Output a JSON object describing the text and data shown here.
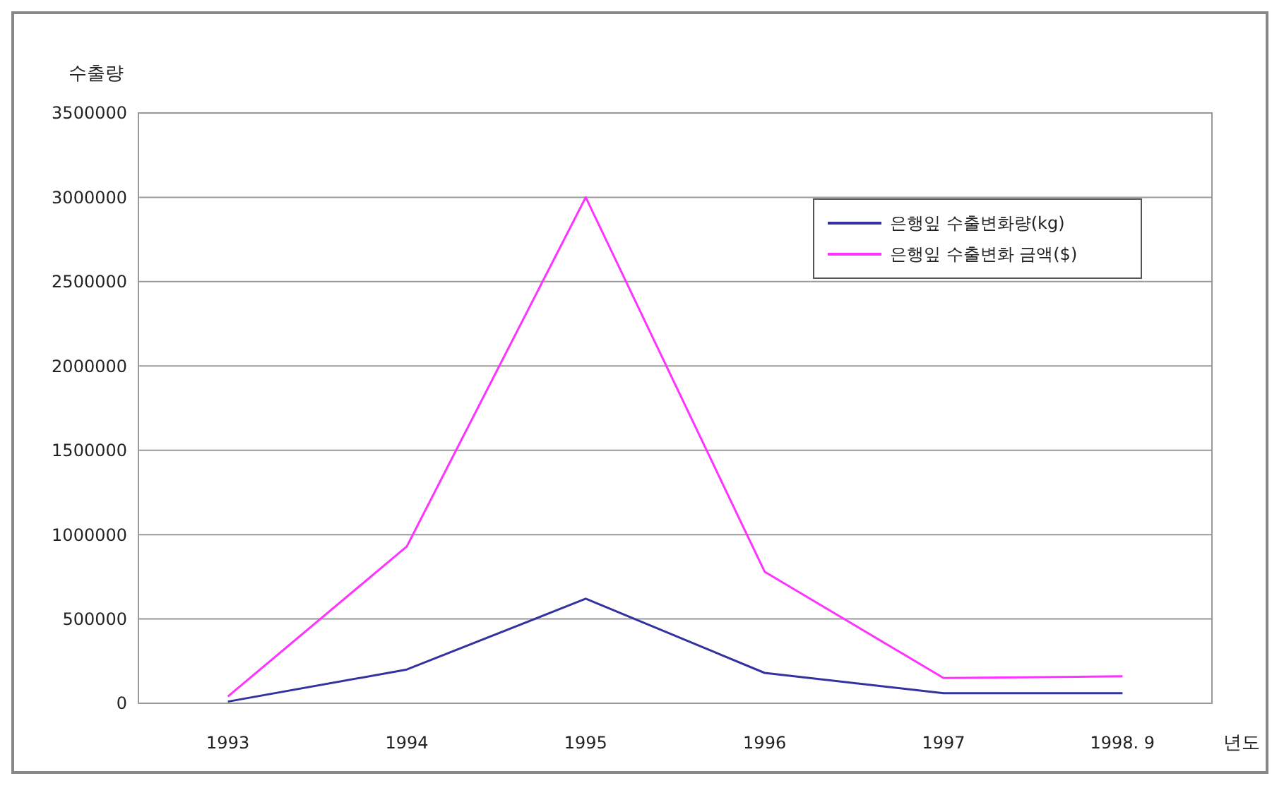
{
  "chart_data": {
    "type": "line",
    "ylabel": "수출량",
    "xlabel": "년도",
    "categories": [
      "1993",
      "1994",
      "1995",
      "1996",
      "1997",
      "1998. 9"
    ],
    "series": [
      {
        "name": "은행잎 수출변화량(kg)",
        "color": "#3333a0",
        "values": [
          10000,
          200000,
          620000,
          180000,
          60000,
          60000
        ]
      },
      {
        "name": "은행잎 수출변화 금액($)",
        "color": "#ff33ff",
        "values": [
          40000,
          930000,
          3000000,
          780000,
          150000,
          160000
        ]
      }
    ],
    "ylim": [
      0,
      3500000
    ],
    "yticks": [
      0,
      500000,
      1000000,
      1500000,
      2000000,
      2500000,
      3000000,
      3500000
    ],
    "grid": "y",
    "legend": "top right",
    "marker": "none",
    "line_style": "solid"
  }
}
